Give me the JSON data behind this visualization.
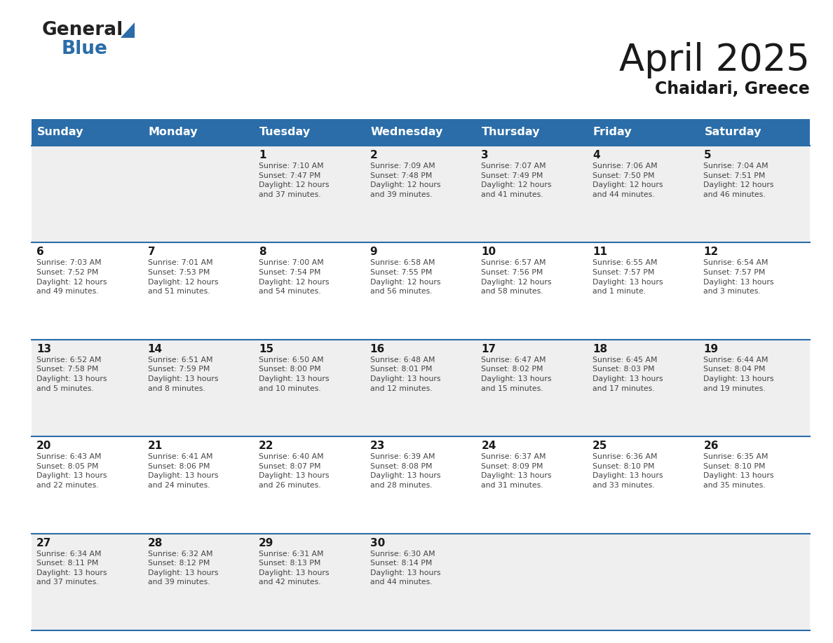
{
  "title": "April 2025",
  "subtitle": "Chaidari, Greece",
  "days_of_week": [
    "Sunday",
    "Monday",
    "Tuesday",
    "Wednesday",
    "Thursday",
    "Friday",
    "Saturday"
  ],
  "header_bg": "#2B6DA8",
  "header_text": "#FFFFFF",
  "cell_bg_odd": "#EFEFEF",
  "cell_bg_even": "#FFFFFF",
  "border_color": "#2B6DA8",
  "day_number_color": "#1a1a1a",
  "text_color": "#444444",
  "title_color": "#1a1a1a",
  "subtitle_color": "#1a1a1a",
  "weeks": [
    [
      {
        "day": null,
        "text": ""
      },
      {
        "day": null,
        "text": ""
      },
      {
        "day": 1,
        "text": "Sunrise: 7:10 AM\nSunset: 7:47 PM\nDaylight: 12 hours\nand 37 minutes."
      },
      {
        "day": 2,
        "text": "Sunrise: 7:09 AM\nSunset: 7:48 PM\nDaylight: 12 hours\nand 39 minutes."
      },
      {
        "day": 3,
        "text": "Sunrise: 7:07 AM\nSunset: 7:49 PM\nDaylight: 12 hours\nand 41 minutes."
      },
      {
        "day": 4,
        "text": "Sunrise: 7:06 AM\nSunset: 7:50 PM\nDaylight: 12 hours\nand 44 minutes."
      },
      {
        "day": 5,
        "text": "Sunrise: 7:04 AM\nSunset: 7:51 PM\nDaylight: 12 hours\nand 46 minutes."
      }
    ],
    [
      {
        "day": 6,
        "text": "Sunrise: 7:03 AM\nSunset: 7:52 PM\nDaylight: 12 hours\nand 49 minutes."
      },
      {
        "day": 7,
        "text": "Sunrise: 7:01 AM\nSunset: 7:53 PM\nDaylight: 12 hours\nand 51 minutes."
      },
      {
        "day": 8,
        "text": "Sunrise: 7:00 AM\nSunset: 7:54 PM\nDaylight: 12 hours\nand 54 minutes."
      },
      {
        "day": 9,
        "text": "Sunrise: 6:58 AM\nSunset: 7:55 PM\nDaylight: 12 hours\nand 56 minutes."
      },
      {
        "day": 10,
        "text": "Sunrise: 6:57 AM\nSunset: 7:56 PM\nDaylight: 12 hours\nand 58 minutes."
      },
      {
        "day": 11,
        "text": "Sunrise: 6:55 AM\nSunset: 7:57 PM\nDaylight: 13 hours\nand 1 minute."
      },
      {
        "day": 12,
        "text": "Sunrise: 6:54 AM\nSunset: 7:57 PM\nDaylight: 13 hours\nand 3 minutes."
      }
    ],
    [
      {
        "day": 13,
        "text": "Sunrise: 6:52 AM\nSunset: 7:58 PM\nDaylight: 13 hours\nand 5 minutes."
      },
      {
        "day": 14,
        "text": "Sunrise: 6:51 AM\nSunset: 7:59 PM\nDaylight: 13 hours\nand 8 minutes."
      },
      {
        "day": 15,
        "text": "Sunrise: 6:50 AM\nSunset: 8:00 PM\nDaylight: 13 hours\nand 10 minutes."
      },
      {
        "day": 16,
        "text": "Sunrise: 6:48 AM\nSunset: 8:01 PM\nDaylight: 13 hours\nand 12 minutes."
      },
      {
        "day": 17,
        "text": "Sunrise: 6:47 AM\nSunset: 8:02 PM\nDaylight: 13 hours\nand 15 minutes."
      },
      {
        "day": 18,
        "text": "Sunrise: 6:45 AM\nSunset: 8:03 PM\nDaylight: 13 hours\nand 17 minutes."
      },
      {
        "day": 19,
        "text": "Sunrise: 6:44 AM\nSunset: 8:04 PM\nDaylight: 13 hours\nand 19 minutes."
      }
    ],
    [
      {
        "day": 20,
        "text": "Sunrise: 6:43 AM\nSunset: 8:05 PM\nDaylight: 13 hours\nand 22 minutes."
      },
      {
        "day": 21,
        "text": "Sunrise: 6:41 AM\nSunset: 8:06 PM\nDaylight: 13 hours\nand 24 minutes."
      },
      {
        "day": 22,
        "text": "Sunrise: 6:40 AM\nSunset: 8:07 PM\nDaylight: 13 hours\nand 26 minutes."
      },
      {
        "day": 23,
        "text": "Sunrise: 6:39 AM\nSunset: 8:08 PM\nDaylight: 13 hours\nand 28 minutes."
      },
      {
        "day": 24,
        "text": "Sunrise: 6:37 AM\nSunset: 8:09 PM\nDaylight: 13 hours\nand 31 minutes."
      },
      {
        "day": 25,
        "text": "Sunrise: 6:36 AM\nSunset: 8:10 PM\nDaylight: 13 hours\nand 33 minutes."
      },
      {
        "day": 26,
        "text": "Sunrise: 6:35 AM\nSunset: 8:10 PM\nDaylight: 13 hours\nand 35 minutes."
      }
    ],
    [
      {
        "day": 27,
        "text": "Sunrise: 6:34 AM\nSunset: 8:11 PM\nDaylight: 13 hours\nand 37 minutes."
      },
      {
        "day": 28,
        "text": "Sunrise: 6:32 AM\nSunset: 8:12 PM\nDaylight: 13 hours\nand 39 minutes."
      },
      {
        "day": 29,
        "text": "Sunrise: 6:31 AM\nSunset: 8:13 PM\nDaylight: 13 hours\nand 42 minutes."
      },
      {
        "day": 30,
        "text": "Sunrise: 6:30 AM\nSunset: 8:14 PM\nDaylight: 13 hours\nand 44 minutes."
      },
      {
        "day": null,
        "text": ""
      },
      {
        "day": null,
        "text": ""
      },
      {
        "day": null,
        "text": ""
      }
    ]
  ],
  "figsize": [
    11.88,
    9.18
  ],
  "dpi": 100
}
